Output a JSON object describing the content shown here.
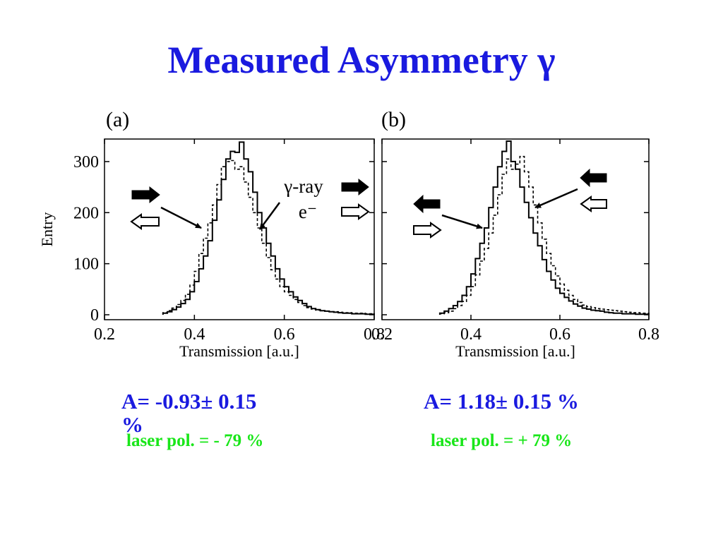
{
  "slide": {
    "title": "Measured Asymmetry γ",
    "result_a": "A= -0.93± 0.15 %",
    "result_b": "A= 1.18± 0.15 %",
    "laser_pol_a": "laser pol. = - 79 %",
    "laser_pol_b": "laser pol. = + 79 %",
    "colors": {
      "title": "#1a1adf",
      "results": "#1a1adf",
      "laser_pol": "#19e619"
    }
  },
  "chart_data": [
    {
      "type": "line",
      "panel_label": "(a)",
      "xlabel": "Transmission [a.u.]",
      "ylabel": "Entry",
      "xlim": [
        0.2,
        0.8
      ],
      "ylim": [
        0,
        340
      ],
      "x_ticks": [
        0.2,
        0.4,
        0.6,
        0.8
      ],
      "x_tick_labels": [
        "0.2",
        "0.4",
        "0.6",
        "0.8"
      ],
      "y_ticks": [
        0,
        100,
        200,
        300
      ],
      "y_tick_labels": [
        "0",
        "100",
        "200",
        "300"
      ],
      "legend": [
        "γ-ray",
        "e⁻"
      ],
      "x": [
        0.33,
        0.34,
        0.35,
        0.36,
        0.37,
        0.38,
        0.39,
        0.4,
        0.41,
        0.42,
        0.43,
        0.44,
        0.45,
        0.46,
        0.47,
        0.48,
        0.49,
        0.5,
        0.51,
        0.52,
        0.53,
        0.54,
        0.55,
        0.56,
        0.57,
        0.58,
        0.59,
        0.6,
        0.61,
        0.62,
        0.63,
        0.64,
        0.65,
        0.66,
        0.67,
        0.68,
        0.69,
        0.7,
        0.71,
        0.72,
        0.73,
        0.74,
        0.75,
        0.76,
        0.77,
        0.78,
        0.79
      ],
      "series": [
        {
          "line_style": "solid",
          "values": [
            3,
            6,
            10,
            15,
            22,
            30,
            45,
            65,
            90,
            115,
            145,
            185,
            225,
            265,
            305,
            320,
            318,
            338,
            305,
            280,
            240,
            200,
            170,
            140,
            115,
            90,
            70,
            55,
            45,
            35,
            28,
            22,
            16,
            12,
            10,
            8,
            7,
            6,
            5,
            4,
            3,
            3,
            2,
            2,
            2,
            1,
            1
          ]
        },
        {
          "line_style": "dashed",
          "values": [
            4,
            8,
            13,
            20,
            28,
            40,
            58,
            85,
            120,
            150,
            180,
            215,
            255,
            290,
            300,
            302,
            285,
            290,
            260,
            230,
            200,
            170,
            140,
            112,
            88,
            70,
            55,
            45,
            38,
            30,
            24,
            18,
            14,
            11,
            9,
            8,
            7,
            6,
            6,
            5,
            4,
            4,
            3,
            3,
            3,
            2,
            2
          ]
        }
      ]
    },
    {
      "type": "line",
      "panel_label": "(b)",
      "xlabel": "Transmission [a.u.]",
      "ylabel": "",
      "xlim": [
        0.2,
        0.8
      ],
      "ylim": [
        0,
        340
      ],
      "x_ticks": [
        0.2,
        0.4,
        0.6,
        0.8
      ],
      "x_tick_labels": [
        "0.2",
        "0.4",
        "0.6",
        "0.8"
      ],
      "y_ticks": [
        0,
        100,
        200,
        300
      ],
      "y_tick_labels": [],
      "x": [
        0.33,
        0.34,
        0.35,
        0.36,
        0.37,
        0.38,
        0.39,
        0.4,
        0.41,
        0.42,
        0.43,
        0.44,
        0.45,
        0.46,
        0.47,
        0.48,
        0.49,
        0.5,
        0.51,
        0.52,
        0.53,
        0.54,
        0.55,
        0.56,
        0.57,
        0.58,
        0.59,
        0.6,
        0.61,
        0.62,
        0.63,
        0.64,
        0.65,
        0.66,
        0.67,
        0.68,
        0.69,
        0.7,
        0.71,
        0.72,
        0.73,
        0.74,
        0.75,
        0.76,
        0.77,
        0.78,
        0.79
      ],
      "series": [
        {
          "line_style": "solid",
          "values": [
            3,
            7,
            12,
            18,
            26,
            38,
            55,
            80,
            110,
            140,
            170,
            210,
            250,
            290,
            320,
            340,
            300,
            285,
            250,
            220,
            190,
            160,
            135,
            108,
            85,
            68,
            52,
            42,
            34,
            27,
            21,
            17,
            13,
            11,
            9,
            8,
            7,
            5,
            4,
            3,
            3,
            2,
            2,
            2,
            1,
            1,
            1
          ]
        },
        {
          "line_style": "dashed",
          "values": [
            2,
            4,
            7,
            12,
            18,
            26,
            38,
            55,
            78,
            105,
            130,
            160,
            195,
            235,
            275,
            305,
            285,
            295,
            310,
            280,
            250,
            215,
            180,
            148,
            120,
            96,
            76,
            60,
            48,
            38,
            30,
            24,
            19,
            16,
            14,
            12,
            11,
            10,
            9,
            8,
            7,
            6,
            5,
            4,
            4,
            3,
            3
          ]
        }
      ]
    }
  ]
}
